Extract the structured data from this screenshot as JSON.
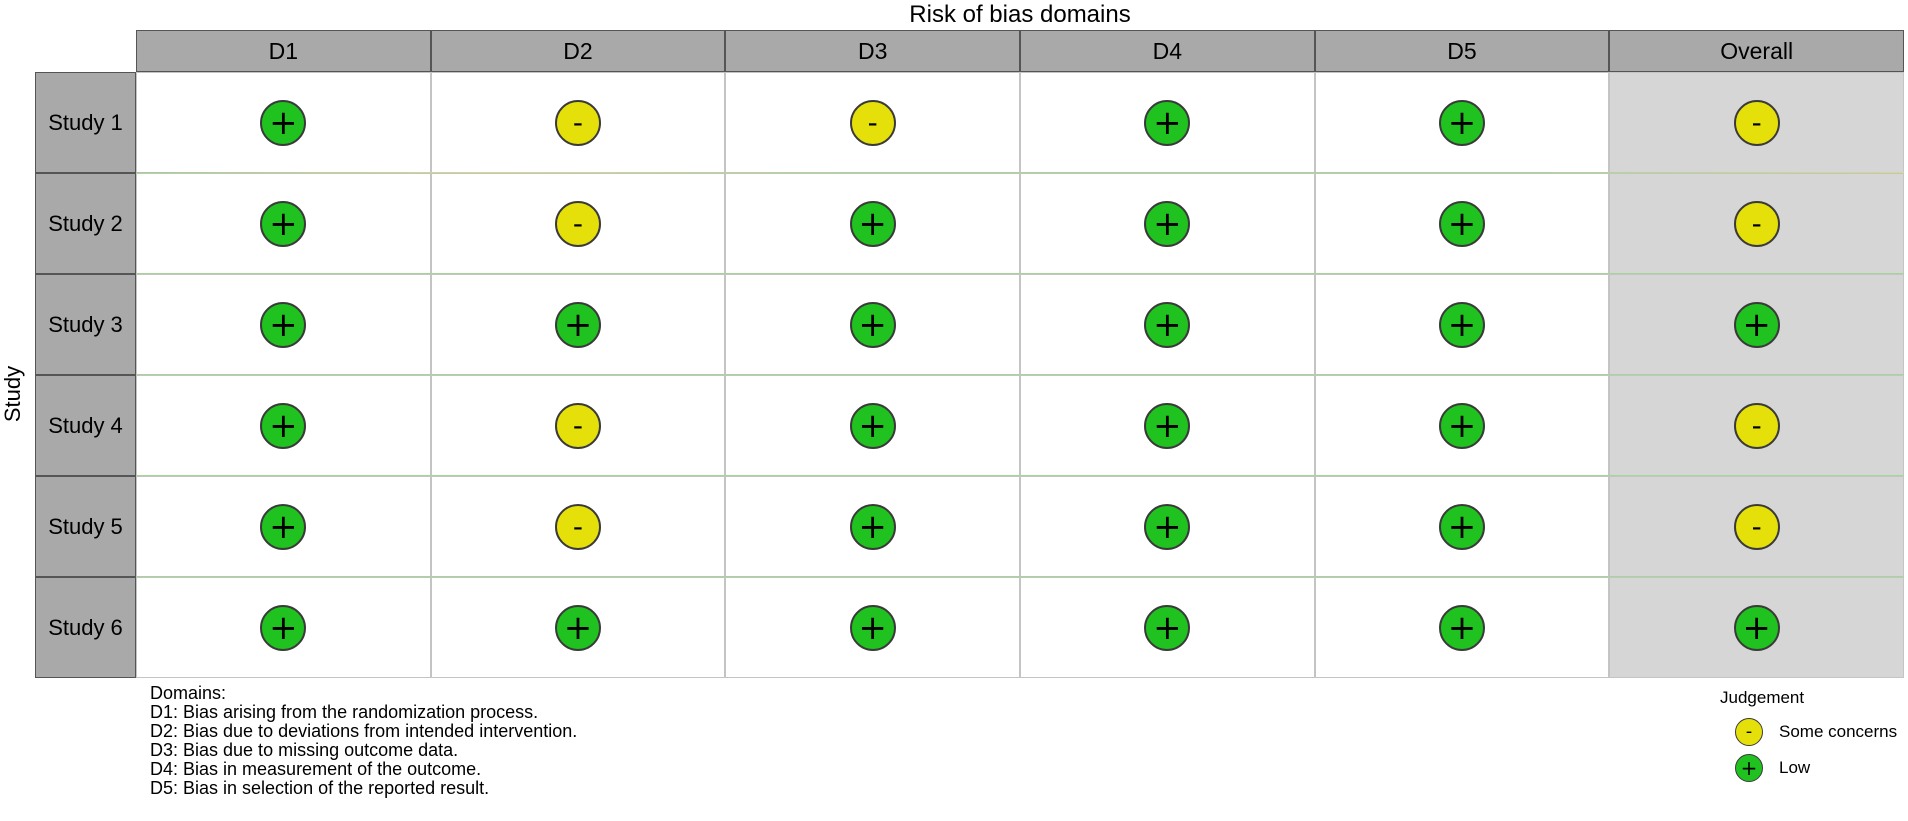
{
  "chart_data": {
    "type": "table",
    "title": "Risk of bias domains",
    "y_axis_label": "Study",
    "columns": [
      "D1",
      "D2",
      "D3",
      "D4",
      "D5",
      "Overall"
    ],
    "rows": [
      {
        "study": "Study 1",
        "judgements": [
          "low",
          "some",
          "some",
          "low",
          "low",
          "some"
        ]
      },
      {
        "study": "Study 2",
        "judgements": [
          "low",
          "some",
          "low",
          "low",
          "low",
          "some"
        ]
      },
      {
        "study": "Study 3",
        "judgements": [
          "low",
          "low",
          "low",
          "low",
          "low",
          "low"
        ]
      },
      {
        "study": "Study 4",
        "judgements": [
          "low",
          "some",
          "low",
          "low",
          "low",
          "some"
        ]
      },
      {
        "study": "Study 5",
        "judgements": [
          "low",
          "some",
          "low",
          "low",
          "low",
          "some"
        ]
      },
      {
        "study": "Study 6",
        "judgements": [
          "low",
          "low",
          "low",
          "low",
          "low",
          "low"
        ]
      }
    ],
    "domains_legend": {
      "title": "Domains:",
      "items": [
        "D1: Bias arising from the randomization process.",
        "D2: Bias due to deviations from intended intervention.",
        "D3: Bias due to missing outcome data.",
        "D4: Bias in measurement of the outcome.",
        "D5: Bias in selection of the reported result."
      ]
    },
    "judgement_legend": {
      "title": "Judgement",
      "items": [
        {
          "key": "some",
          "symbol": "-",
          "label": "Some concerns",
          "color": "#e6e00a"
        },
        {
          "key": "low",
          "symbol": "+",
          "label": "Low",
          "color": "#1fc21f"
        }
      ]
    },
    "colors": {
      "header_bg": "#a9a9a9",
      "overall_bg": "#d6d6d6",
      "low": "#1fc21f",
      "some": "#e6e00a"
    }
  }
}
